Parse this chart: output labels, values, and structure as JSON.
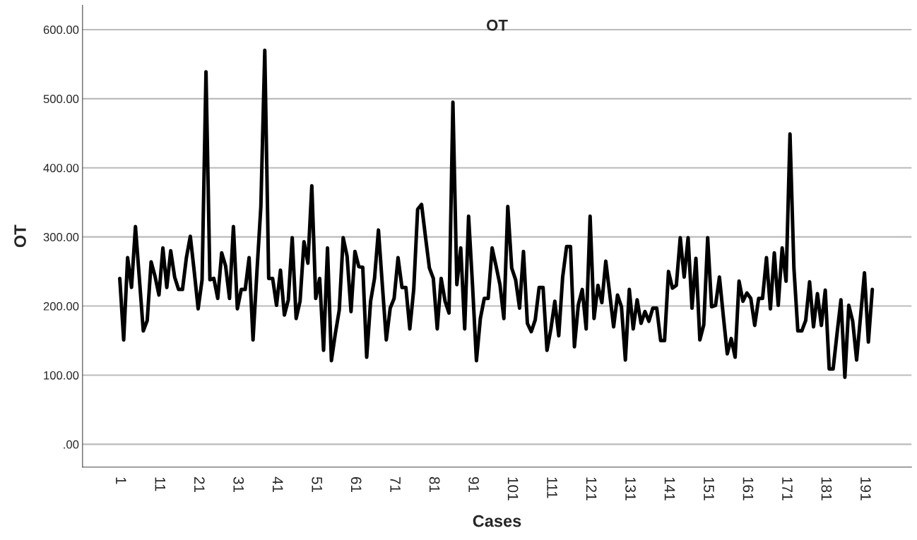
{
  "chart_data": {
    "type": "line",
    "title": "OT",
    "xlabel": "Cases",
    "ylabel": "OT",
    "categories": [
      "1",
      null,
      null,
      null,
      null,
      null,
      null,
      null,
      null,
      null,
      "11",
      null,
      null,
      null,
      null,
      null,
      null,
      null,
      null,
      null,
      "21",
      null,
      null,
      null,
      null,
      null,
      null,
      null,
      null,
      null,
      "31",
      null,
      null,
      null,
      null,
      null,
      null,
      null,
      null,
      null,
      "41",
      null,
      null,
      null,
      null,
      null,
      null,
      null,
      null,
      null,
      "51",
      null,
      null,
      null,
      null,
      null,
      null,
      null,
      null,
      null,
      "61",
      null,
      null,
      null,
      null,
      null,
      null,
      null,
      null,
      null,
      "71",
      null,
      null,
      null,
      null,
      null,
      null,
      null,
      null,
      null,
      "81",
      null,
      null,
      null,
      null,
      null,
      null,
      null,
      null,
      null,
      "91",
      null,
      null,
      null,
      null,
      null,
      null,
      null,
      null,
      null,
      "101",
      null,
      null,
      null,
      null,
      null,
      null,
      null,
      null,
      null,
      "111",
      null,
      null,
      null,
      null,
      null,
      null,
      null,
      null,
      null,
      "121",
      null,
      null,
      null,
      null,
      null,
      null,
      null,
      null,
      null,
      "131",
      null,
      null,
      null,
      null,
      null,
      null,
      null,
      null,
      null,
      "141",
      null,
      null,
      null,
      null,
      null,
      null,
      null,
      null,
      null,
      "151",
      null,
      null,
      null,
      null,
      null,
      null,
      null,
      null,
      null,
      "161",
      null,
      null,
      null,
      null,
      null,
      null,
      null,
      null,
      null,
      "171",
      null,
      null,
      null,
      null,
      null,
      null,
      null,
      null,
      null,
      "181",
      null,
      null,
      null,
      null,
      null,
      null,
      null,
      null,
      null,
      "191",
      null,
      null
    ],
    "series": [
      {
        "color": "#000000",
        "values": [
          240,
          151,
          270,
          227,
          315,
          240,
          164,
          179,
          264,
          243,
          216,
          284,
          227,
          280,
          242,
          224,
          224,
          270,
          301,
          250,
          196,
          238,
          539,
          238,
          240,
          211,
          277,
          258,
          211,
          315,
          196,
          224,
          224,
          270,
          151,
          250,
          344,
          570,
          240,
          240,
          201,
          252,
          187,
          209,
          299,
          182,
          207,
          293,
          262,
          374,
          211,
          240,
          136,
          284,
          121,
          160,
          194,
          299,
          272,
          192,
          279,
          257,
          256,
          126,
          207,
          240,
          310,
          230,
          151,
          197,
          211,
          270,
          227,
          227,
          167,
          224,
          340,
          347,
          300,
          255,
          240,
          167,
          240,
          207,
          190,
          495,
          231,
          284,
          167,
          330,
          230,
          121,
          182,
          211,
          211,
          284,
          258,
          231,
          182,
          344,
          255,
          238,
          197,
          279,
          175,
          163,
          180,
          227,
          227,
          136,
          167,
          207,
          157,
          242,
          286,
          286,
          141,
          202,
          224,
          167,
          330,
          182,
          230,
          205,
          265,
          218,
          170,
          216,
          199,
          122,
          224,
          167,
          209,
          175,
          192,
          178,
          197,
          197,
          150,
          150,
          250,
          226,
          230,
          299,
          242,
          299,
          197,
          269,
          151,
          173,
          299,
          199,
          201,
          242,
          185,
          131,
          153,
          126,
          236,
          207,
          219,
          211,
          172,
          211,
          211,
          270,
          196,
          277,
          201,
          284,
          236,
          449,
          255,
          164,
          164,
          179,
          235,
          170,
          218,
          172,
          223,
          109,
          109,
          160,
          209,
          97,
          201,
          178,
          122,
          185,
          248,
          148,
          224
        ]
      }
    ],
    "ylim": [
      -33,
      635
    ],
    "yticks": [
      {
        "value": 0,
        "label": ".00"
      },
      {
        "value": 100,
        "label": "100.00"
      },
      {
        "value": 200,
        "label": "200.00"
      },
      {
        "value": 300,
        "label": "300.00"
      },
      {
        "value": 400,
        "label": "400.00"
      },
      {
        "value": 500,
        "label": "500.00"
      },
      {
        "value": 600,
        "label": "600.00"
      }
    ],
    "grid": "y",
    "marker": "none",
    "line_style": "solid"
  }
}
